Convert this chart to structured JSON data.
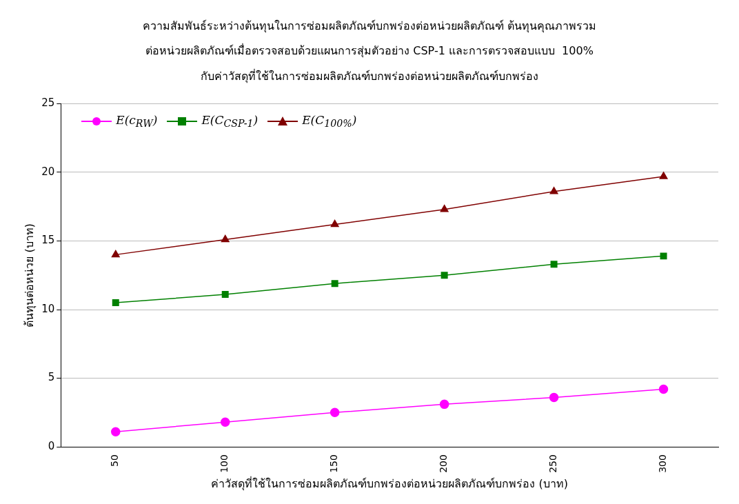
{
  "chart_data": {
    "type": "line",
    "title": "ความสัมพันธ์ระหว่างต้นทุนในการซ่อมผลิตภัณฑ์บกพร่องต่อหน่วยผลิตภัณฑ์ ต้นทุนคุณภาพรวม\nต่อหน่วยผลิตภัณฑ์เมื่อตรวจสอบด้วยแผนการสุ่มตัวอย่าง CSP-1 และการตรวจสอบแบบ  100%\nกับค่าวัสดุที่ใช้ในการซ่อมผลิตภัณฑ์บกพร่องต่อหน่วยผลิตภัณฑ์บกพร่อง",
    "xlabel": "ค่าวัสดุที่ใช้ในการซ่อมผลิตภัณฑ์บกพร่องต่อหน่วยผลิตภัณฑ์บกพร่อง (บาท)",
    "ylabel": "ต้นทุนต่อหน่วย (บาท)",
    "categories": [
      "50",
      "100",
      "150",
      "200",
      "250",
      "300"
    ],
    "series": [
      {
        "name": "E(c$_{RW}$)",
        "color": "#ff00ff",
        "marker": "circle",
        "values": [
          1.1,
          1.8,
          2.5,
          3.1,
          3.6,
          4.2
        ]
      },
      {
        "name": "E(C$_{CSP-1}$)",
        "color": "#008000",
        "marker": "square",
        "values": [
          10.5,
          11.1,
          11.9,
          12.5,
          13.3,
          13.9
        ]
      },
      {
        "name": "E(C$_{100%}$)",
        "color": "#800000",
        "marker": "triangle",
        "values": [
          14.0,
          15.1,
          16.2,
          17.3,
          18.6,
          19.7
        ]
      }
    ],
    "ylim": [
      0,
      25
    ],
    "yticks": [
      0,
      5,
      10,
      15,
      20,
      25
    ],
    "grid": "y",
    "legend": "top left",
    "line_style": "solid"
  }
}
